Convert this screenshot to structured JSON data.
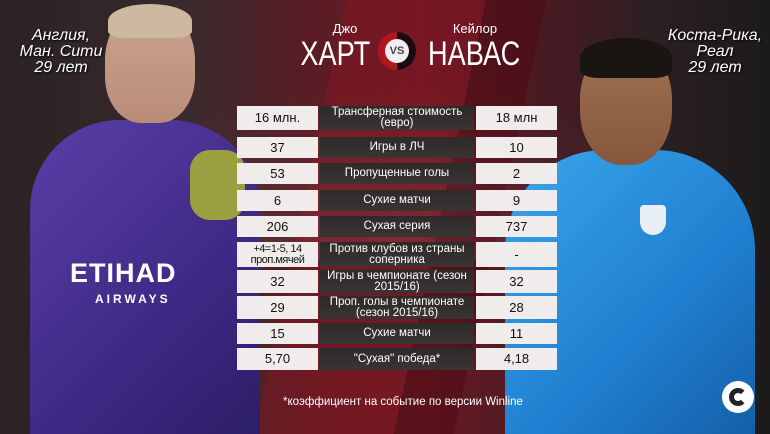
{
  "left_player": {
    "first_name": "Джо",
    "last_name": "ХАРТ",
    "country": "Англия,",
    "club": "Ман. Сити",
    "age": "29 лет",
    "jersey_sponsor": "ETIHAD",
    "jersey_sponsor_sub": "AIRWAYS",
    "jersey_color": "#4a33a0"
  },
  "right_player": {
    "first_name": "Кейлор",
    "last_name": "НАВАС",
    "country": "Коста-Рика,",
    "club": "Реал",
    "age": "29 лет",
    "jersey_color": "#2b8fe0"
  },
  "vs_label": "VS",
  "rows": [
    {
      "label": "Трансферная стоимость (евро)",
      "left": "16 млн.",
      "right": "18 млн"
    },
    {
      "label": "Игры в ЛЧ",
      "left": "37",
      "right": "10"
    },
    {
      "label": "Пропущенные голы",
      "left": "53",
      "right": "2"
    },
    {
      "label": "Сухие матчи",
      "left": "6",
      "right": "9"
    },
    {
      "label": "Сухая серия",
      "left": "206",
      "right": "737"
    },
    {
      "label": "Против клубов из страны соперника",
      "left": "+4=1-5, 14 проп.мячей",
      "right": "-"
    },
    {
      "label": "Игры в чемпионате (сезон 2015/16)",
      "left": "32",
      "right": "32"
    },
    {
      "label": "Проп. голы в чемпионате (сезон 2015/16)",
      "left": "29",
      "right": "28"
    },
    {
      "label": "Сухие матчи",
      "left": "15",
      "right": "11"
    },
    {
      "label": "\"Сухая\" победа*",
      "left": "5,70",
      "right": "4,18"
    }
  ],
  "footnote": "*коэффициент на событие по версии Winline",
  "accent_color": "#b0161e"
}
